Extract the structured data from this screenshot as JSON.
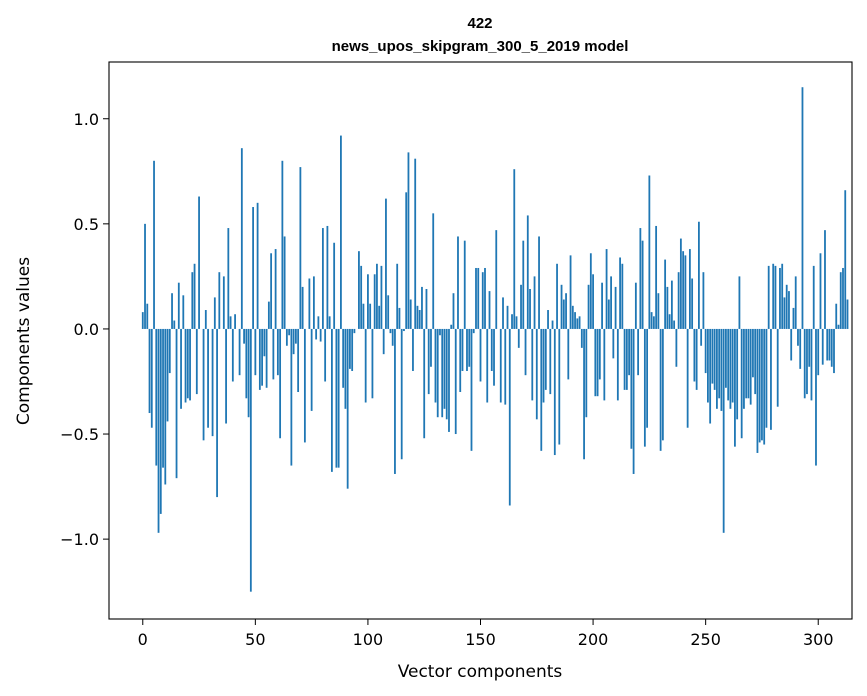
{
  "chart_data": {
    "type": "bar",
    "title_line1": "422",
    "title_line2": "news_upos_skipgram_300_5_2019 model",
    "xlabel": "Vector components",
    "ylabel": "Components values",
    "xlim": [
      -15,
      315
    ],
    "ylim": [
      -1.38,
      1.27
    ],
    "x_ticks": [
      0,
      50,
      100,
      150,
      200,
      250,
      300
    ],
    "x_tick_labels": [
      "0",
      "50",
      "100",
      "150",
      "200",
      "250",
      "300"
    ],
    "y_ticks": [
      -1.0,
      -0.5,
      0.0,
      0.5,
      1.0
    ],
    "y_tick_labels": [
      "−1.0",
      "−0.5",
      "0.0",
      "0.5",
      "1.0"
    ],
    "grid": false,
    "bar_color": "#1f77b4",
    "values": [
      0.08,
      0.5,
      0.12,
      -0.4,
      -0.47,
      0.8,
      -0.65,
      -0.97,
      -0.88,
      -0.66,
      -0.74,
      -0.44,
      -0.21,
      0.17,
      0.04,
      -0.71,
      0.22,
      -0.38,
      0.16,
      -0.35,
      -0.33,
      -0.34,
      0.27,
      0.31,
      -0.31,
      0.63,
      0.0,
      -0.53,
      0.09,
      -0.47,
      0.0,
      -0.51,
      0.15,
      -0.8,
      0.27,
      0.0,
      0.25,
      -0.45,
      0.48,
      0.06,
      -0.25,
      0.07,
      0.0,
      -0.22,
      0.86,
      -0.07,
      -0.33,
      -0.42,
      -1.25,
      0.58,
      -0.22,
      0.6,
      -0.29,
      -0.27,
      -0.13,
      -0.28,
      0.13,
      0.36,
      -0.24,
      0.38,
      -0.22,
      -0.52,
      0.8,
      0.44,
      -0.08,
      -0.03,
      -0.65,
      -0.12,
      -0.07,
      -0.3,
      0.77,
      0.2,
      -0.54,
      0.0,
      0.24,
      -0.39,
      0.25,
      -0.05,
      0.06,
      -0.06,
      0.48,
      -0.25,
      0.49,
      0.06,
      -0.68,
      0.41,
      -0.66,
      -0.66,
      0.92,
      -0.28,
      -0.38,
      -0.76,
      -0.19,
      -0.2,
      -0.02,
      0.0,
      0.37,
      0.3,
      0.12,
      -0.35,
      0.26,
      0.12,
      -0.33,
      0.26,
      0.31,
      0.11,
      0.3,
      -0.12,
      0.62,
      0.16,
      -0.02,
      -0.08,
      -0.69,
      0.31,
      0.1,
      -0.62,
      -0.01,
      0.65,
      0.84,
      0.14,
      -0.2,
      0.81,
      0.11,
      0.09,
      0.2,
      -0.52,
      0.19,
      -0.31,
      -0.18,
      0.55,
      -0.35,
      -0.42,
      -0.03,
      -0.42,
      -0.38,
      -0.43,
      -0.49,
      0.02,
      0.17,
      -0.5,
      0.44,
      -0.3,
      -0.2,
      0.42,
      -0.2,
      -0.18,
      -0.58,
      -0.02,
      0.29,
      0.29,
      -0.25,
      0.27,
      0.29,
      -0.35,
      0.18,
      -0.2,
      -0.27,
      0.47,
      0.0,
      -0.35,
      0.15,
      -0.36,
      0.11,
      -0.84,
      0.07,
      0.76,
      0.06,
      -0.09,
      0.21,
      0.42,
      -0.22,
      0.54,
      0.19,
      -0.34,
      0.25,
      -0.43,
      0.44,
      -0.58,
      -0.35,
      -0.29,
      0.09,
      -0.31,
      0.04,
      -0.6,
      0.31,
      -0.55,
      0.21,
      0.14,
      0.17,
      -0.24,
      0.35,
      0.11,
      0.08,
      0.05,
      0.06,
      -0.09,
      -0.62,
      -0.42,
      0.21,
      0.36,
      0.26,
      -0.32,
      -0.32,
      -0.24,
      0.22,
      -0.34,
      0.38,
      0.14,
      0.25,
      -0.14,
      0.2,
      -0.34,
      0.34,
      0.31,
      -0.29,
      -0.29,
      -0.22,
      -0.57,
      -0.69,
      0.22,
      -0.22,
      0.48,
      0.42,
      -0.56,
      -0.47,
      0.73,
      0.08,
      0.06,
      0.49,
      0.17,
      -0.58,
      -0.53,
      0.33,
      0.2,
      0.07,
      0.23,
      0.04,
      -0.18,
      0.27,
      0.43,
      0.37,
      0.35,
      -0.47,
      0.38,
      0.24,
      -0.25,
      -0.29,
      0.51,
      -0.08,
      0.27,
      -0.21,
      -0.35,
      -0.45,
      -0.26,
      -0.29,
      -0.38,
      -0.33,
      -0.39,
      -0.97,
      -0.28,
      -0.34,
      -0.38,
      -0.35,
      -0.56,
      -0.43,
      0.25,
      -0.52,
      -0.38,
      -0.33,
      -0.33,
      -0.36,
      -0.23,
      -0.31,
      -0.59,
      -0.54,
      -0.53,
      -0.55,
      -0.47,
      0.3,
      -0.48,
      0.31,
      0.3,
      -0.37,
      0.29,
      0.31,
      0.15,
      0.21,
      0.18,
      -0.15,
      0.1,
      0.25,
      -0.08,
      -0.19,
      1.15,
      -0.33,
      -0.31,
      -0.18,
      -0.34,
      0.3,
      -0.65,
      -0.22,
      0.36,
      -0.17,
      0.47,
      -0.15,
      -0.15,
      -0.18,
      -0.21,
      0.12,
      0.02,
      0.27,
      0.29,
      0.66,
      0.14
    ]
  }
}
